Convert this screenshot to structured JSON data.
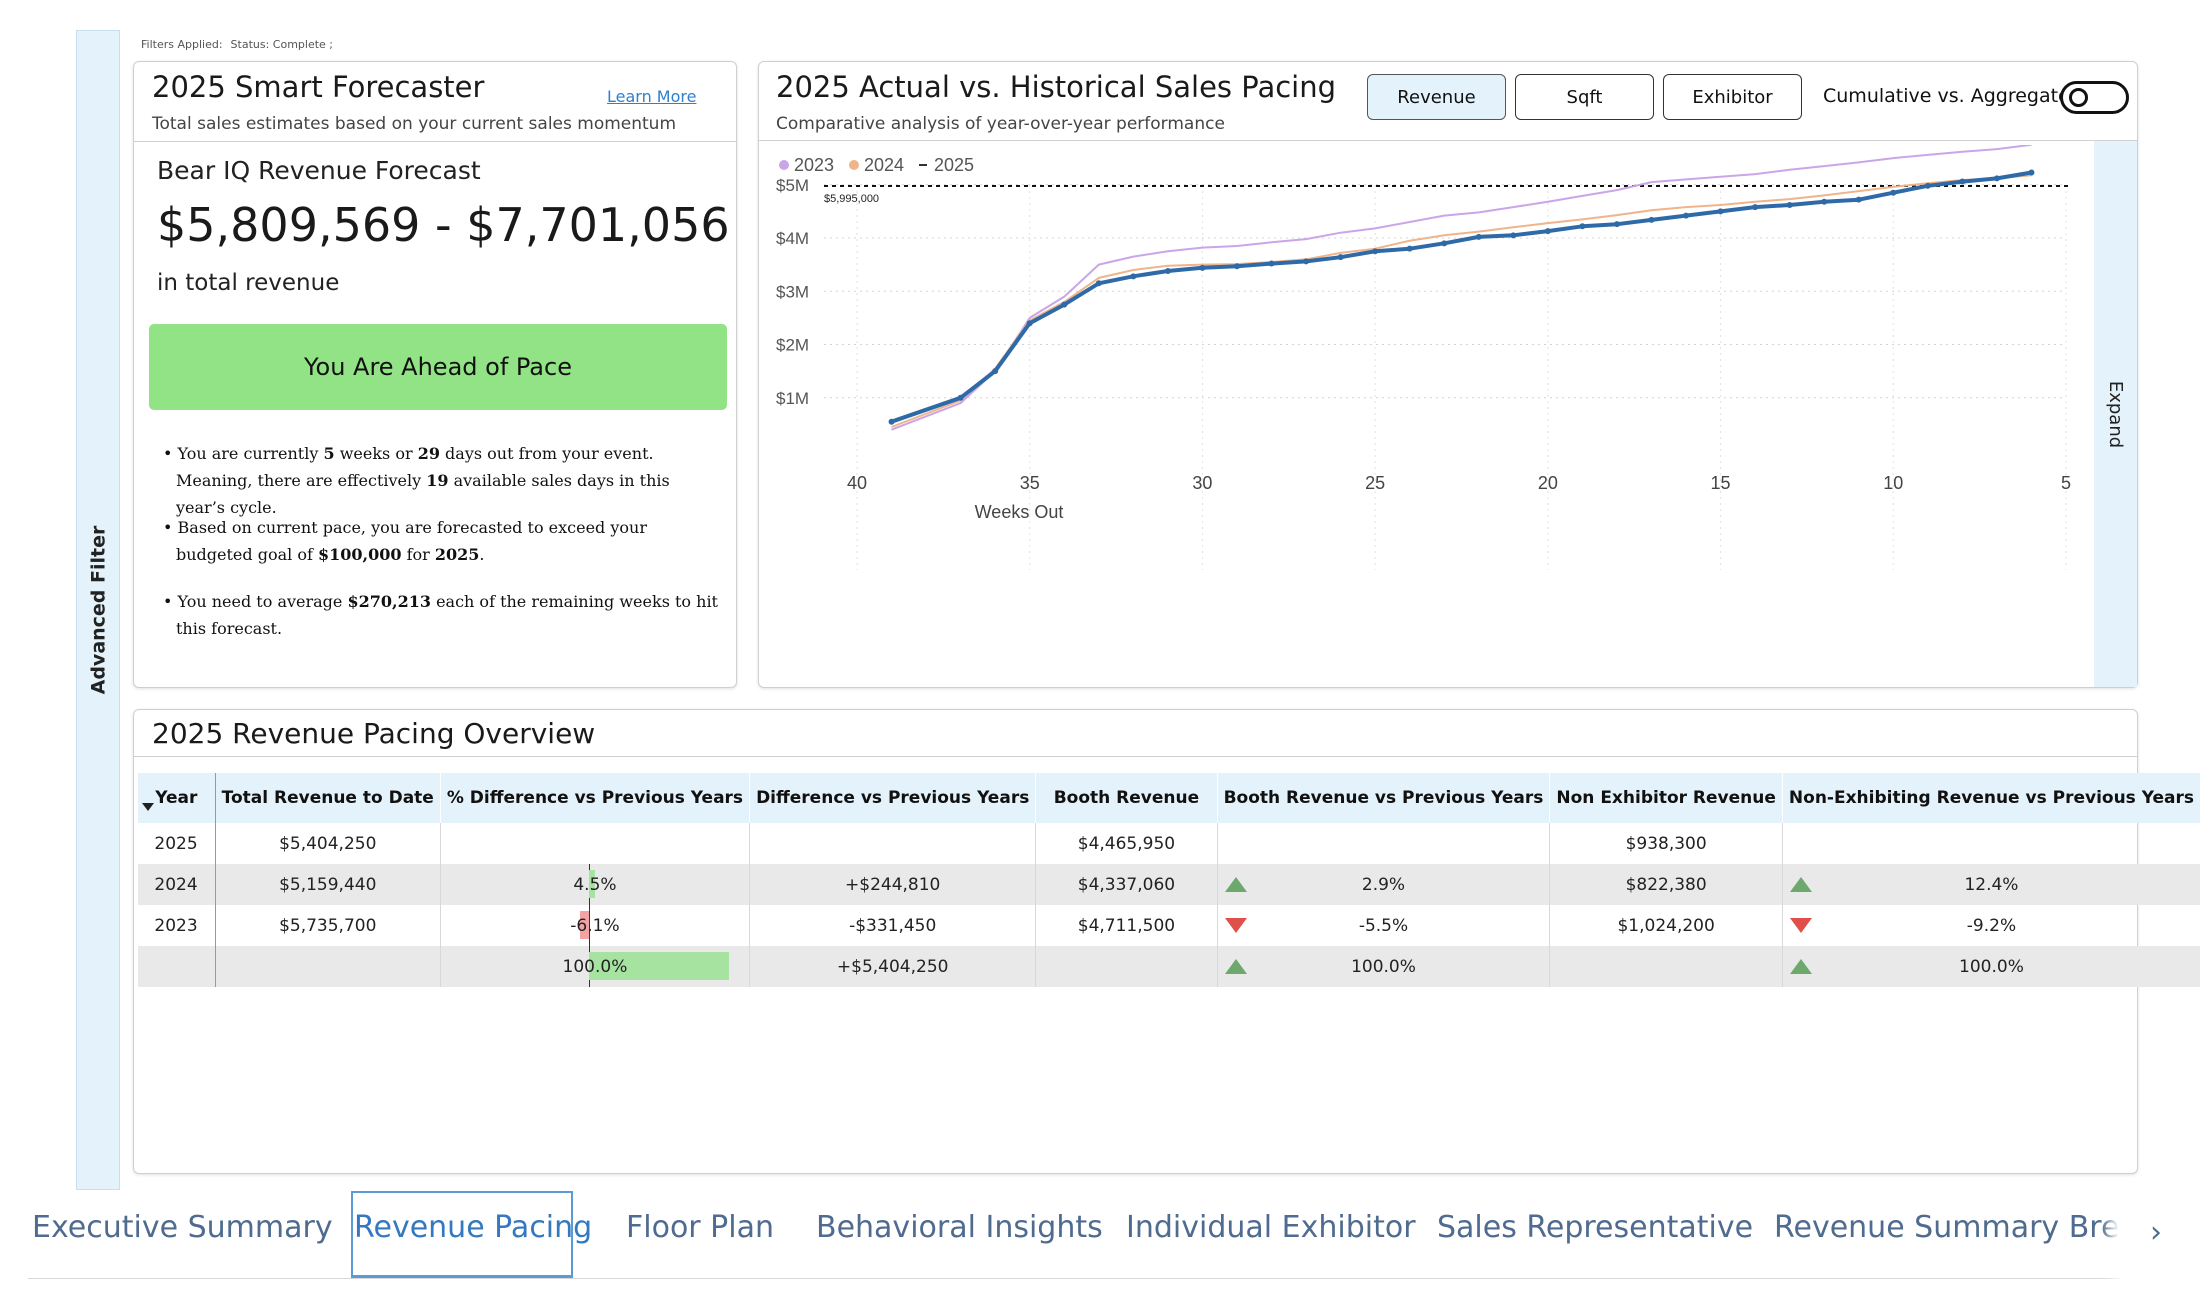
{
  "filters_applied": {
    "label": "Filters Applied:",
    "value": "Status: Complete ;"
  },
  "advanced_filter_label": "Advanced Filter",
  "forecaster": {
    "title": "2025 Smart Forecaster",
    "learn_more": "Learn More",
    "subtitle": "Total sales estimates based on your current sales momentum",
    "forecast_label": "Bear IQ Revenue Forecast",
    "forecast_range": "$5,809,569 - $7,701,056",
    "forecast_caption": "in total revenue",
    "pace_status": "You Are Ahead of Pace",
    "bullets": {
      "b1_a": "You are currently ",
      "b1_weeks": "5",
      "b1_b": " weeks or ",
      "b1_days": "29",
      "b1_c": " days out from your event. Meaning, there are effectively ",
      "b1_avail": "19",
      "b1_d": " available sales days in this year’s cycle.",
      "b2_a": "Based on current pace, you are forecasted to exceed your budgeted goal of ",
      "b2_goal": "$100,000",
      "b2_b": " for ",
      "b2_year": "2025",
      "b2_c": ".",
      "b3_a": "You need to average ",
      "b3_avg": "$270,213",
      "b3_b": " each of the remaining weeks to hit this forecast."
    }
  },
  "pacing": {
    "title": "2025 Actual vs. Historical Sales Pacing",
    "subtitle": "Comparative analysis of year-over-year performance",
    "buttons": [
      "Revenue",
      "Sqft",
      "Exhibitor"
    ],
    "active_button": "Revenue",
    "toggle_label": "Cumulative vs. Aggregate",
    "expand_label": "Expand"
  },
  "chart_data": {
    "type": "line",
    "title": "2025 Actual vs. Historical Sales Pacing",
    "xlabel": "Weeks Out",
    "ylabel": "",
    "xlim": [
      40,
      5
    ],
    "ylim": [
      0,
      6200000
    ],
    "x_ticks": [
      40,
      35,
      30,
      25,
      20,
      15,
      10,
      5
    ],
    "y_ticks": [
      {
        "value": 1000000,
        "label": "$1M"
      },
      {
        "value": 2000000,
        "label": "$2M"
      },
      {
        "value": 3000000,
        "label": "$3M"
      },
      {
        "value": 4000000,
        "label": "$4M"
      },
      {
        "value": 5000000,
        "label": "$5M"
      }
    ],
    "goal_line": {
      "value": 5995000,
      "label": "$5,995,000"
    },
    "legend": [
      "2023",
      "2024",
      "2025"
    ],
    "x": [
      39,
      37,
      36,
      35,
      34,
      33,
      32,
      31,
      30,
      29,
      28,
      27,
      26,
      25,
      24,
      23,
      22,
      21,
      20,
      19,
      18,
      17,
      16,
      15,
      14,
      13,
      12,
      11,
      10,
      9,
      8,
      7,
      6
    ],
    "series": [
      {
        "name": "2023",
        "color": "#c9a6e8",
        "values": [
          400000,
          900000,
          1500000,
          2500000,
          2900000,
          3500000,
          3650000,
          3750000,
          3820000,
          3850000,
          3920000,
          3980000,
          4100000,
          4180000,
          4300000,
          4420000,
          4480000,
          4580000,
          4680000,
          4790000,
          4900000,
          5050000,
          5100000,
          5150000,
          5200000,
          5280000,
          5350000,
          5420000,
          5500000,
          5560000,
          5620000,
          5670000,
          5750000
        ]
      },
      {
        "name": "2024",
        "color": "#f0b48a",
        "values": [
          450000,
          950000,
          1550000,
          2450000,
          2800000,
          3250000,
          3400000,
          3480000,
          3500000,
          3510000,
          3550000,
          3600000,
          3720000,
          3800000,
          3950000,
          4050000,
          4120000,
          4200000,
          4280000,
          4350000,
          4430000,
          4520000,
          4580000,
          4620000,
          4680000,
          4730000,
          4800000,
          4880000,
          4960000,
          5030000,
          5090000,
          5120000,
          5180000
        ]
      },
      {
        "name": "2025",
        "color": "#2f6aa8",
        "values": [
          550000,
          1000000,
          1500000,
          2400000,
          2750000,
          3150000,
          3280000,
          3380000,
          3440000,
          3470000,
          3520000,
          3560000,
          3640000,
          3750000,
          3800000,
          3900000,
          4020000,
          4050000,
          4130000,
          4220000,
          4260000,
          4340000,
          4420000,
          4500000,
          4580000,
          4620000,
          4680000,
          4720000,
          4850000,
          4980000,
          5060000,
          5120000,
          5230000
        ]
      }
    ]
  },
  "overview": {
    "title": "2025 Revenue Pacing Overview",
    "columns": [
      "Year",
      "Total Revenue to Date",
      "% Difference vs Previous Years",
      "Difference vs Previous Years",
      "Booth Revenue",
      "Booth Revenue vs Previous Years",
      "Non Exhibitor Revenue",
      "Non-Exhibiting Revenue vs Previous Years"
    ],
    "rows": [
      {
        "year": "2025",
        "total": "$5,404,250",
        "pct": "",
        "diff": "",
        "booth": "$4,465,950",
        "booth_vs": "",
        "non_ex": "$938,300",
        "non_ex_vs": ""
      },
      {
        "year": "2024",
        "total": "$5,159,440",
        "pct": "4.5%",
        "pct_value": 4.5,
        "diff": "+$244,810",
        "booth": "$4,337,060",
        "booth_vs": "2.9%",
        "non_ex": "$822,380",
        "non_ex_vs": "12.4%"
      },
      {
        "year": "2023",
        "total": "$5,735,700",
        "pct": "-6.1%",
        "pct_value": -6.1,
        "diff": "-$331,450",
        "booth": "$4,711,500",
        "booth_vs": "-5.5%",
        "non_ex": "$1,024,200",
        "non_ex_vs": "-9.2%"
      },
      {
        "year": "",
        "total": "",
        "pct": "100.0%",
        "pct_value": 100.0,
        "diff": "+$5,404,250",
        "booth": "",
        "booth_vs": "100.0%",
        "non_ex": "",
        "non_ex_vs": "100.0%"
      }
    ]
  },
  "tabs": [
    "Executive Summary",
    "Revenue Pacing",
    "Floor Plan",
    "Behavioral Insights",
    "Individual Exhibitor",
    "Sales Representative",
    "Revenue Summary Breakd"
  ],
  "active_tab": "Revenue Pacing",
  "colors": {
    "accent": "#3479c0",
    "pace_green": "#91e385",
    "panel_blue": "#e4f2fb"
  }
}
